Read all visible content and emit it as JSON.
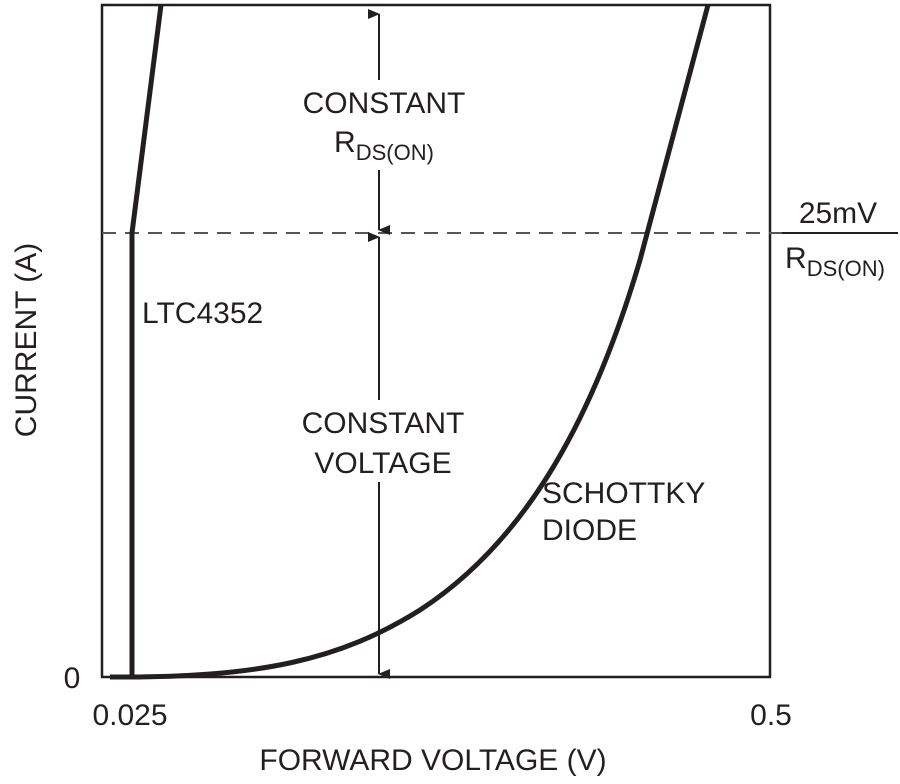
{
  "chart_data": {
    "type": "line",
    "xlabel": "FORWARD VOLTAGE (V)",
    "ylabel": "CURRENT (A)",
    "x_ticks": [
      "0.025",
      "0.5"
    ],
    "y_ticks": [
      "0"
    ],
    "series": [
      {
        "name": "LTC4352",
        "label": "LTC4352"
      },
      {
        "name": "SCHOTTKY DIODE",
        "label_line1": "SCHOTTKY",
        "label_line2": "DIODE"
      }
    ],
    "annotations": {
      "constant_rds": {
        "line1": "CONSTANT",
        "line2_main": "R",
        "line2_sub": "DS(ON)"
      },
      "constant_voltage": {
        "line1": "CONSTANT",
        "line2": "VOLTAGE"
      },
      "threshold": {
        "numerator": "25mV",
        "denominator_main": "R",
        "denominator_sub": "DS(ON)"
      }
    },
    "grid": false,
    "colors": {
      "ink": "#231f20"
    }
  }
}
